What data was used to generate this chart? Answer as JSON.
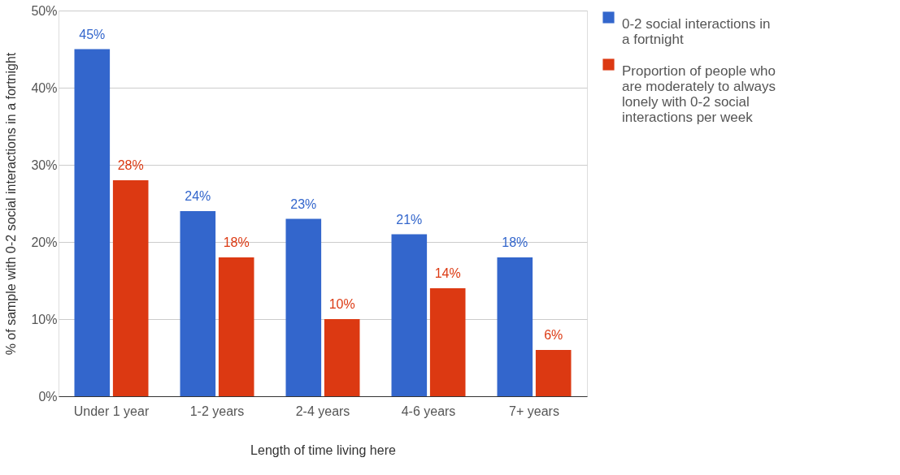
{
  "chart_data": {
    "type": "bar",
    "xlabel": "Length of time living here",
    "ylabel": "% of sample with 0-2 social interactions in a fortnight",
    "categories": [
      "Under 1 year",
      "1-2 years",
      "2-4 years",
      "4-6 years",
      "7+ years"
    ],
    "series": [
      {
        "name": "0-2 social interactions in a fortnight",
        "color": "#3366cc",
        "values": [
          45,
          24,
          23,
          21,
          18
        ],
        "value_labels": [
          "45%",
          "24%",
          "23%",
          "21%",
          "18%"
        ]
      },
      {
        "name": "Proportion of people who are moderately to always lonely with 0-2 social interactions per week",
        "color": "#dc3912",
        "values": [
          28,
          18,
          10,
          14,
          6
        ],
        "value_labels": [
          "28%",
          "18%",
          "10%",
          "14%",
          "6%"
        ]
      }
    ],
    "ylim": [
      0,
      50
    ],
    "yticks": [
      {
        "value": 0,
        "label": "0%"
      },
      {
        "value": 10,
        "label": "10%"
      },
      {
        "value": 20,
        "label": "20%"
      },
      {
        "value": 30,
        "label": "30%"
      },
      {
        "value": 40,
        "label": "40%"
      },
      {
        "value": 50,
        "label": "50%"
      }
    ],
    "grid": "y",
    "legend": "top right"
  }
}
